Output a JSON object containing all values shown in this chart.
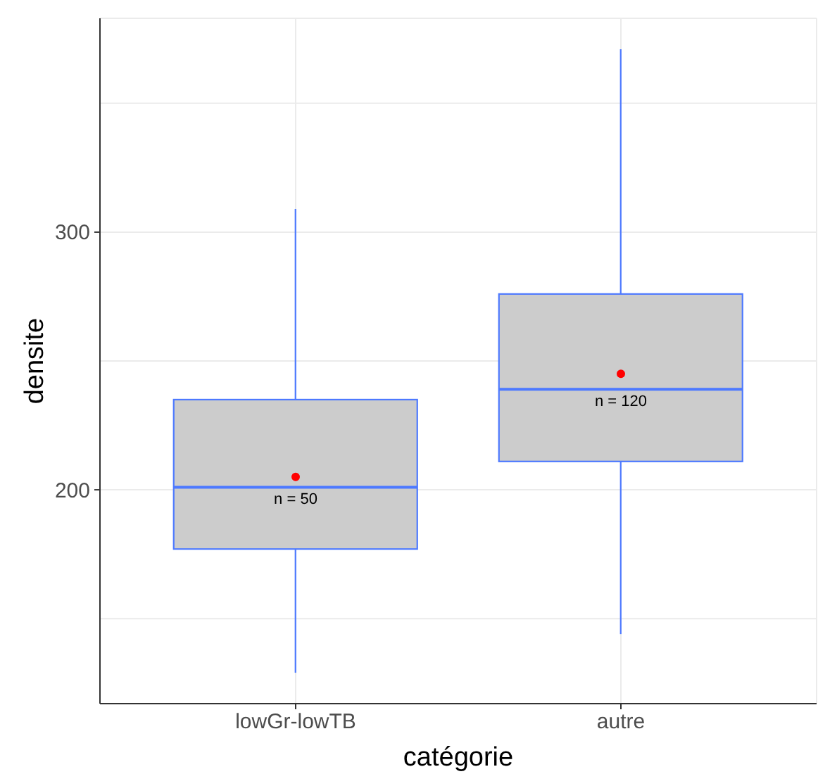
{
  "chart_data": {
    "type": "box",
    "xlabel": "catégorie",
    "ylabel": "densite",
    "categories": [
      "lowGr-lowTB",
      "autre"
    ],
    "series": [
      {
        "type": "box",
        "color": "#4d79ff",
        "colors": [
          "#cccccc",
          "#cccccc"
        ],
        "boxes": [
          {
            "low": 129,
            "q1": 177,
            "median": 201,
            "q3": 235,
            "high": 309
          },
          {
            "low": 144,
            "q1": 211,
            "median": 239,
            "q3": 276,
            "high": 371
          }
        ]
      },
      {
        "type": "scatter",
        "color": "#ff0000",
        "x": [
          "lowGr-lowTB",
          "autre"
        ],
        "values": [
          205,
          245
        ]
      }
    ],
    "annotations": [
      "n = 50",
      "n = 120"
    ],
    "ylim": [
      117,
      383
    ],
    "yticks": [
      {
        "value": 150,
        "label": null
      },
      200,
      {
        "value": 250,
        "label": null
      },
      300,
      {
        "value": 350,
        "label": null
      }
    ],
    "grid": true,
    "marker": "circle"
  }
}
